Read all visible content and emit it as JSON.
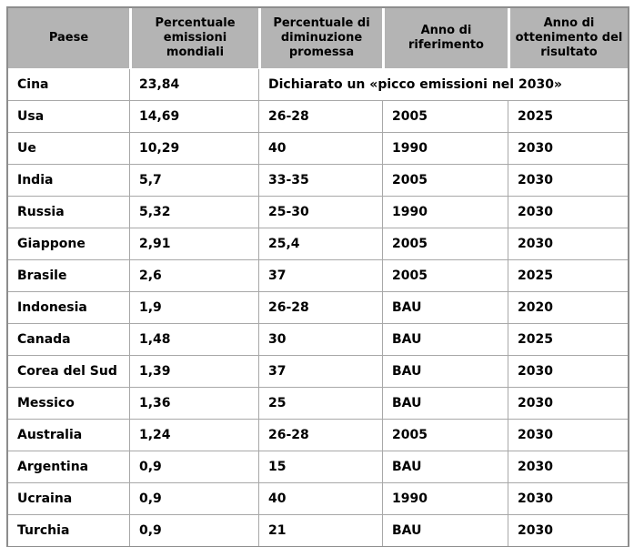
{
  "chart_data": {
    "type": "table",
    "title": "",
    "columns": [
      "Paese",
      "Percentuale emissioni mondiali",
      "Percentuale di diminuzione promessa",
      "Anno di riferimento",
      "Anno di ottenimento del risultato"
    ],
    "rows": [
      [
        "Cina",
        "23,84",
        "Dichiarato un «picco emissioni nel 2030»"
      ],
      [
        "Usa",
        "14,69",
        "26-28",
        "2005",
        "2025"
      ],
      [
        "Ue",
        "10,29",
        "40",
        "1990",
        "2030"
      ],
      [
        "India",
        "5,7",
        "33-35",
        "2005",
        "2030"
      ],
      [
        "Russia",
        "5,32",
        "25-30",
        "1990",
        "2030"
      ],
      [
        "Giappone",
        "2,91",
        "25,4",
        "2005",
        "2030"
      ],
      [
        "Brasile",
        "2,6",
        "37",
        "2005",
        "2025"
      ],
      [
        "Indonesia",
        "1,9",
        "26-28",
        "BAU",
        "2020"
      ],
      [
        "Canada",
        "1,48",
        "30",
        "BAU",
        "2025"
      ],
      [
        "Corea del Sud",
        "1,39",
        "37",
        "BAU",
        "2030"
      ],
      [
        "Messico",
        "1,36",
        "25",
        "BAU",
        "2030"
      ],
      [
        "Australia",
        "1,24",
        "26-28",
        "2005",
        "2030"
      ],
      [
        "Argentina",
        "0,9",
        "15",
        "BAU",
        "2030"
      ],
      [
        "Ucraina",
        "0,9",
        "40",
        "1990",
        "2030"
      ],
      [
        "Turchia",
        "0,9",
        "21",
        "BAU",
        "2030"
      ]
    ]
  },
  "colors": {
    "header_bg": "#b4b4b4",
    "grid_line": "#a8a8a8",
    "outer_border": "#8d8d8d",
    "header_separator": "#ffffff",
    "text": "#000000",
    "row_bg": "#ffffff"
  }
}
